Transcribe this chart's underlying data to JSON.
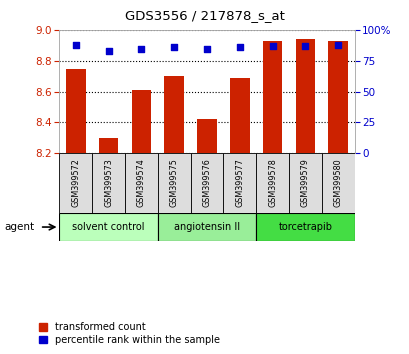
{
  "title": "GDS3556 / 217878_s_at",
  "samples": [
    "GSM399572",
    "GSM399573",
    "GSM399574",
    "GSM399575",
    "GSM399576",
    "GSM399577",
    "GSM399578",
    "GSM399579",
    "GSM399580"
  ],
  "bar_values": [
    8.75,
    8.3,
    8.61,
    8.7,
    8.42,
    8.69,
    8.93,
    8.94,
    8.93
  ],
  "percentile_values": [
    88,
    83,
    85,
    86,
    85,
    86,
    87,
    87,
    88
  ],
  "ylim_left": [
    8.2,
    9.0
  ],
  "ylim_right": [
    0,
    100
  ],
  "yticks_left": [
    8.2,
    8.4,
    8.6,
    8.8,
    9.0
  ],
  "yticks_right": [
    0,
    25,
    50,
    75,
    100
  ],
  "ytick_labels_right": [
    "0",
    "25",
    "50",
    "75",
    "100%"
  ],
  "bar_color": "#cc2200",
  "dot_color": "#0000cc",
  "groups": [
    {
      "label": "solvent control",
      "indices": [
        0,
        1,
        2
      ],
      "color": "#bbffbb"
    },
    {
      "label": "angiotensin II",
      "indices": [
        3,
        4,
        5
      ],
      "color": "#99ee99"
    },
    {
      "label": "torcetrapib",
      "indices": [
        6,
        7,
        8
      ],
      "color": "#44dd44"
    }
  ],
  "sample_bg_color": "#dddddd",
  "agent_label": "agent",
  "legend_bar_label": "transformed count",
  "legend_dot_label": "percentile rank within the sample",
  "background_color": "#ffffff",
  "plot_bg_color": "#ffffff",
  "grid_color": "#000000",
  "tick_color_left": "#cc2200",
  "tick_color_right": "#0000cc",
  "bar_width": 0.6
}
